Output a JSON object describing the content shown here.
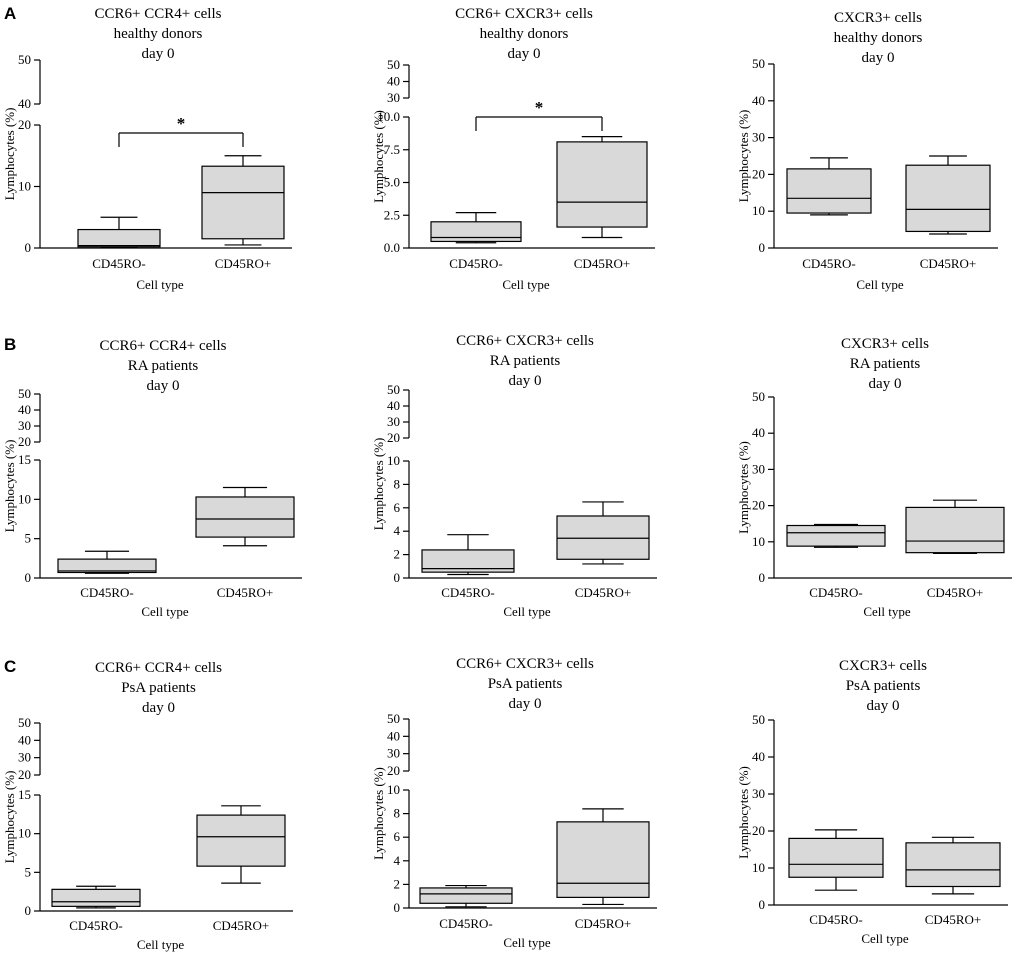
{
  "figure": {
    "panel_letters": [
      "A",
      "B",
      "C"
    ]
  },
  "colors": {
    "box_fill": "#d9d9d9",
    "stroke": "#000000"
  },
  "chart_data": [
    {
      "type": "boxplot",
      "panel": "A",
      "title": [
        "CCR6+ CCR4+ cells",
        "healthy donors",
        "day 0"
      ],
      "xlabel": "Cell type",
      "ylabel": "Lymphocytes (%)",
      "y_break": {
        "lower": [
          0,
          20
        ],
        "upper": [
          40,
          50
        ]
      },
      "lower_ticks": [
        0,
        10,
        20
      ],
      "upper_ticks": [
        40,
        50
      ],
      "categories": [
        "CD45RO-",
        "CD45RO+"
      ],
      "boxes": [
        {
          "min": 0.1,
          "q1": 0.2,
          "median": 0.4,
          "q3": 3.0,
          "max": 5.0
        },
        {
          "min": 0.5,
          "q1": 1.5,
          "median": 9.0,
          "q3": 13.3,
          "max": 15.0
        }
      ],
      "significance": "*"
    },
    {
      "type": "boxplot",
      "panel": "A",
      "title": [
        "CCR6+ CXCR3+ cells",
        "healthy donors",
        "day 0"
      ],
      "xlabel": "Cell type",
      "ylabel": "Lymphocytes (%)",
      "y_break": {
        "lower": [
          0,
          10
        ],
        "upper": [
          30,
          50
        ]
      },
      "lower_ticks": [
        0.0,
        2.5,
        5.0,
        7.5,
        10.0
      ],
      "lower_tick_labels": [
        "0.0",
        "2.5",
        "5.0",
        "7.5",
        "10.0"
      ],
      "upper_ticks": [
        30,
        40,
        50
      ],
      "categories": [
        "CD45RO-",
        "CD45RO+"
      ],
      "boxes": [
        {
          "min": 0.4,
          "q1": 0.5,
          "median": 0.8,
          "q3": 2.0,
          "max": 2.7
        },
        {
          "min": 0.8,
          "q1": 1.6,
          "median": 3.5,
          "q3": 8.1,
          "max": 8.5
        }
      ],
      "significance": "*"
    },
    {
      "type": "boxplot",
      "panel": "A",
      "title": [
        "CXCR3+ cells",
        "healthy donors",
        "day 0"
      ],
      "xlabel": "Cell type",
      "ylabel": "Lymphocytes (%)",
      "y_break": null,
      "ylim": [
        0,
        50
      ],
      "lower_ticks": [
        0,
        10,
        20,
        30,
        40,
        50
      ],
      "categories": [
        "CD45RO-",
        "CD45RO+"
      ],
      "boxes": [
        {
          "min": 9.0,
          "q1": 9.5,
          "median": 13.5,
          "q3": 21.5,
          "max": 24.5
        },
        {
          "min": 3.8,
          "q1": 4.5,
          "median": 10.5,
          "q3": 22.5,
          "max": 25.0
        }
      ]
    },
    {
      "type": "boxplot",
      "panel": "B",
      "title": [
        "CCR6+ CCR4+ cells",
        "RA patients",
        "day 0"
      ],
      "xlabel": "Cell type",
      "ylabel": "Lymphocytes (%)",
      "y_break": {
        "lower": [
          0,
          15
        ],
        "upper": [
          20,
          50
        ]
      },
      "lower_ticks": [
        0,
        5,
        10,
        15
      ],
      "upper_ticks": [
        20,
        30,
        40,
        50
      ],
      "categories": [
        "CD45RO-",
        "CD45RO+"
      ],
      "boxes": [
        {
          "min": 0.6,
          "q1": 0.7,
          "median": 0.9,
          "q3": 2.4,
          "max": 3.4
        },
        {
          "min": 4.1,
          "q1": 5.2,
          "median": 7.5,
          "q3": 10.3,
          "max": 11.5
        }
      ]
    },
    {
      "type": "boxplot",
      "panel": "B",
      "title": [
        "CCR6+ CXCR3+ cells",
        "RA patients",
        "day 0"
      ],
      "xlabel": "Cell type",
      "ylabel": "Lymphocytes (%)",
      "y_break": {
        "lower": [
          0,
          10
        ],
        "upper": [
          20,
          50
        ]
      },
      "lower_ticks": [
        0,
        2,
        4,
        6,
        8,
        10
      ],
      "upper_ticks": [
        20,
        30,
        40,
        50
      ],
      "categories": [
        "CD45RO-",
        "CD45RO+"
      ],
      "boxes": [
        {
          "min": 0.3,
          "q1": 0.5,
          "median": 0.8,
          "q3": 2.4,
          "max": 3.7
        },
        {
          "min": 1.2,
          "q1": 1.6,
          "median": 3.4,
          "q3": 5.3,
          "max": 6.5
        }
      ]
    },
    {
      "type": "boxplot",
      "panel": "B",
      "title": [
        "CXCR3+ cells",
        "RA patients",
        "day 0"
      ],
      "xlabel": "Cell type",
      "ylabel": "Lymphocytes (%)",
      "y_break": null,
      "ylim": [
        0,
        50
      ],
      "lower_ticks": [
        0,
        10,
        20,
        30,
        40,
        50
      ],
      "categories": [
        "CD45RO-",
        "CD45RO+"
      ],
      "boxes": [
        {
          "min": 8.5,
          "q1": 8.8,
          "median": 12.5,
          "q3": 14.5,
          "max": 14.8
        },
        {
          "min": 6.8,
          "q1": 7.0,
          "median": 10.2,
          "q3": 19.5,
          "max": 21.5
        }
      ]
    },
    {
      "type": "boxplot",
      "panel": "C",
      "title": [
        "CCR6+ CCR4+ cells",
        "PsA patients",
        "day 0"
      ],
      "xlabel": "Cell type",
      "ylabel": "Lymphocytes (%)",
      "y_break": {
        "lower": [
          0,
          15
        ],
        "upper": [
          20,
          50
        ]
      },
      "lower_ticks": [
        0,
        5,
        10,
        15
      ],
      "upper_ticks": [
        20,
        30,
        40,
        50
      ],
      "categories": [
        "CD45RO-",
        "CD45RO+"
      ],
      "boxes": [
        {
          "min": 0.4,
          "q1": 0.6,
          "median": 1.2,
          "q3": 2.8,
          "max": 3.2
        },
        {
          "min": 3.6,
          "q1": 5.8,
          "median": 9.6,
          "q3": 12.4,
          "max": 13.6
        }
      ]
    },
    {
      "type": "boxplot",
      "panel": "C",
      "title": [
        "CCR6+ CXCR3+ cells",
        "PsA patients",
        "day 0"
      ],
      "xlabel": "Cell type",
      "ylabel": "Lymphocytes (%)",
      "y_break": {
        "lower": [
          0,
          10
        ],
        "upper": [
          20,
          50
        ]
      },
      "lower_ticks": [
        0,
        2,
        4,
        6,
        8,
        10
      ],
      "upper_ticks": [
        20,
        30,
        40,
        50
      ],
      "categories": [
        "CD45RO-",
        "CD45RO+"
      ],
      "boxes": [
        {
          "min": 0.1,
          "q1": 0.4,
          "median": 1.2,
          "q3": 1.7,
          "max": 1.9
        },
        {
          "min": 0.3,
          "q1": 0.9,
          "median": 2.1,
          "q3": 7.3,
          "max": 8.4
        }
      ]
    },
    {
      "type": "boxplot",
      "panel": "C",
      "title": [
        "CXCR3+ cells",
        "PsA patients",
        "day 0"
      ],
      "xlabel": "Cell type",
      "ylabel": "Lymphocytes (%)",
      "y_break": null,
      "ylim": [
        0,
        50
      ],
      "lower_ticks": [
        0,
        10,
        20,
        30,
        40,
        50
      ],
      "categories": [
        "CD45RO-",
        "CD45RO+"
      ],
      "boxes": [
        {
          "min": 4.0,
          "q1": 7.5,
          "median": 11.0,
          "q3": 18.0,
          "max": 20.3
        },
        {
          "min": 3.0,
          "q1": 5.0,
          "median": 9.5,
          "q3": 16.8,
          "max": 18.3
        }
      ]
    }
  ]
}
